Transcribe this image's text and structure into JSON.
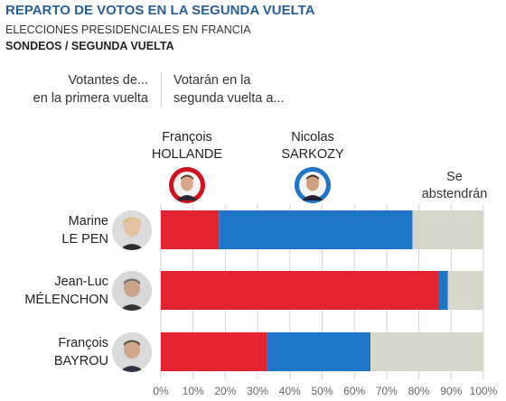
{
  "header": {
    "title": "REPARTO DE VOTOS EN LA SEGUNDA VUELTA",
    "subtitle1": "ELECCIONES PRESIDENCIALES EN FRANCIA",
    "subtitle2": "SONDEOS / SEGUNDA VUELTA",
    "col_left": "Votantes de...\nen la primera vuelta",
    "col_right": "Votarán en la\nsegunda vuelta a..."
  },
  "legend": {
    "hollande": "François\nHOLLANDE",
    "sarkozy": "Nicolas\nSARKOZY",
    "abstain": "Se\nabstendrán"
  },
  "colors": {
    "hollande": "#e3232f",
    "sarkozy": "#1f76c8",
    "abstain": "#d6d6ca",
    "title": "#2a5f93"
  },
  "rows": [
    {
      "label": "Marine\nLE PEN"
    },
    {
      "label": "Jean-Luc\nMÉLENCHON"
    },
    {
      "label": "François\nBAYROU"
    }
  ],
  "chart_data": {
    "type": "bar",
    "orientation": "horizontal",
    "stacked": true,
    "categories": [
      "Marine LE PEN",
      "Jean-Luc MÉLENCHON",
      "François BAYROU"
    ],
    "series": [
      {
        "name": "François HOLLANDE",
        "values": [
          18,
          86,
          33
        ]
      },
      {
        "name": "Nicolas SARKOZY",
        "values": [
          60,
          3,
          32
        ]
      },
      {
        "name": "Se abstendrán",
        "values": [
          22,
          11,
          35
        ]
      }
    ],
    "xlim": [
      0,
      100
    ],
    "xticks": [
      "0%",
      "10%",
      "20%",
      "30%",
      "40%",
      "50%",
      "60%",
      "70%",
      "80%",
      "90%",
      "100%"
    ],
    "grid": true
  }
}
